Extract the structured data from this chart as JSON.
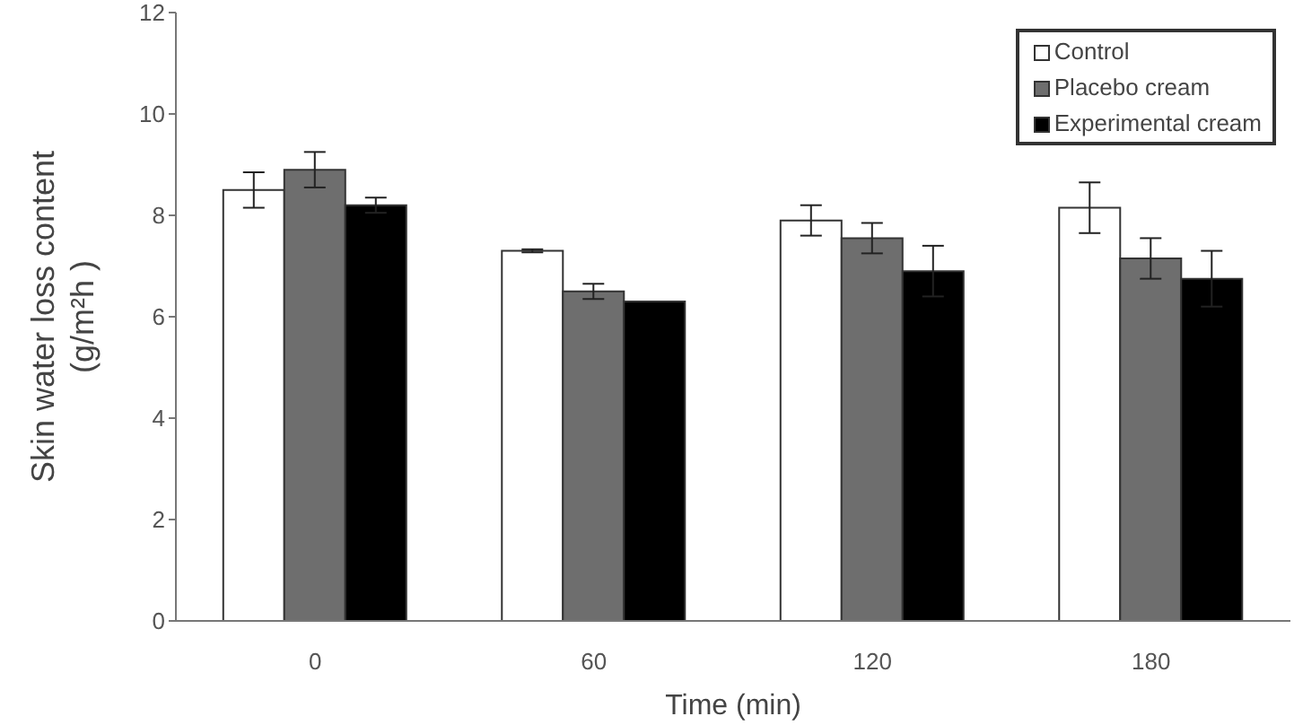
{
  "chart_data": {
    "type": "bar",
    "xlabel": "Time (min)",
    "ylabel": "Skin water loss content\n(g/m²h )",
    "categories": [
      "0",
      "60",
      "120",
      "180"
    ],
    "series": [
      {
        "name": "Control",
        "color": "#ffffff",
        "values": [
          8.5,
          7.3,
          7.9,
          8.15
        ],
        "errors": [
          0.35,
          0.03,
          0.3,
          0.5
        ]
      },
      {
        "name": "Placebo cream",
        "color": "#6e6e6e",
        "values": [
          8.9,
          6.5,
          7.55,
          7.15
        ],
        "errors": [
          0.35,
          0.15,
          0.3,
          0.4
        ]
      },
      {
        "name": "Experimental cream",
        "color": "#000000",
        "values": [
          8.2,
          6.3,
          6.9,
          6.75
        ],
        "errors": [
          0.15,
          null,
          0.5,
          0.55
        ]
      }
    ],
    "ylim": [
      0,
      12
    ],
    "yticks": [
      0,
      2,
      4,
      6,
      8,
      10,
      12
    ],
    "grid": false,
    "legend": "top right"
  }
}
